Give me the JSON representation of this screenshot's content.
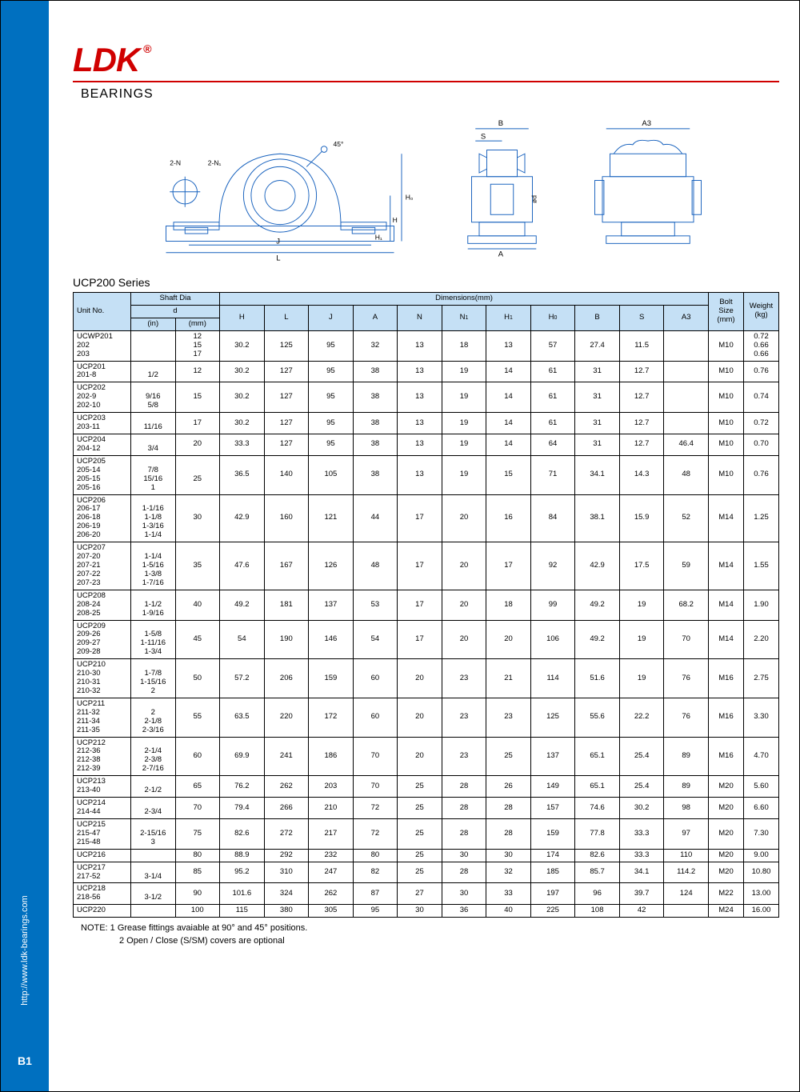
{
  "brand": "LDK",
  "brand_reg": "®",
  "subtitle": "BEARINGS",
  "side_url": "http://www.ldk-bearings.com",
  "page_number": "B1",
  "series_title": "UCP200 Series",
  "note_line1": "NOTE: 1 Grease fittings avaiable at 90° and 45° positions.",
  "note_line2": "2 Open / Close (S/SM) covers are optional",
  "colors": {
    "brand_red": "#d00000",
    "sidebar_blue": "#0070c0",
    "header_blue": "#c5e0f5",
    "border": "#000000",
    "diagram_line": "#1560bd"
  },
  "table": {
    "headers": {
      "unit_no": "Unit No.",
      "shaft_dia": "Shaft Dia",
      "d": "d",
      "in": "(in)",
      "mm": "(mm)",
      "dimensions": "Dimensions(mm)",
      "H": "H",
      "L": "L",
      "J": "J",
      "A": "A",
      "N": "N",
      "N1": "N",
      "N1_sub": "1",
      "H1": "H",
      "H1_sub": "1",
      "H0": "H",
      "H0_sub": "0",
      "B": "B",
      "S": "S",
      "A3": "A3",
      "bolt": "Bolt\nSize\n(mm)",
      "weight": "Weight\n(kg)"
    },
    "rows": [
      {
        "unit": "UCWP201\n202\n203",
        "in": "",
        "mm": "12\n15\n17",
        "H": "30.2",
        "L": "125",
        "J": "95",
        "A": "32",
        "N": "13",
        "N1": "18",
        "H1": "13",
        "H0": "57",
        "B": "27.4",
        "S": "11.5",
        "A3": "",
        "bolt": "M10",
        "wt": "0.72\n0.66\n0.66"
      },
      {
        "unit": "UCP201\n201-8",
        "in": "\n1/2",
        "mm": "12",
        "H": "30.2",
        "L": "127",
        "J": "95",
        "A": "38",
        "N": "13",
        "N1": "19",
        "H1": "14",
        "H0": "61",
        "B": "31",
        "S": "12.7",
        "A3": "",
        "bolt": "M10",
        "wt": "0.76"
      },
      {
        "unit": "UCP202\n202-9\n202-10",
        "in": "\n9/16\n5/8",
        "mm": "15",
        "H": "30.2",
        "L": "127",
        "J": "95",
        "A": "38",
        "N": "13",
        "N1": "19",
        "H1": "14",
        "H0": "61",
        "B": "31",
        "S": "12.7",
        "A3": "",
        "bolt": "M10",
        "wt": "0.74"
      },
      {
        "unit": "UCP203\n203-11",
        "in": "\n11/16",
        "mm": "17",
        "H": "30.2",
        "L": "127",
        "J": "95",
        "A": "38",
        "N": "13",
        "N1": "19",
        "H1": "14",
        "H0": "61",
        "B": "31",
        "S": "12.7",
        "A3": "",
        "bolt": "M10",
        "wt": "0.72"
      },
      {
        "unit": "UCP204\n204-12",
        "in": "\n3/4",
        "mm": "20",
        "H": "33.3",
        "L": "127",
        "J": "95",
        "A": "38",
        "N": "13",
        "N1": "19",
        "H1": "14",
        "H0": "64",
        "B": "31",
        "S": "12.7",
        "A3": "46.4",
        "bolt": "M10",
        "wt": "0.70"
      },
      {
        "unit": "UCP205\n205-14\n205-15\n205-16",
        "in": "\n7/8\n15/16\n1",
        "mm": "\n25",
        "H": "36.5",
        "L": "140",
        "J": "105",
        "A": "38",
        "N": "13",
        "N1": "19",
        "H1": "15",
        "H0": "71",
        "B": "34.1",
        "S": "14.3",
        "A3": "48",
        "bolt": "M10",
        "wt": "0.76"
      },
      {
        "unit": "UCP206\n206-17\n206-18\n206-19\n206-20",
        "in": "\n1-1/16\n1-1/8\n1-3/16\n1-1/4",
        "mm": "30",
        "H": "42.9",
        "L": "160",
        "J": "121",
        "A": "44",
        "N": "17",
        "N1": "20",
        "H1": "16",
        "H0": "84",
        "B": "38.1",
        "S": "15.9",
        "A3": "52",
        "bolt": "M14",
        "wt": "1.25"
      },
      {
        "unit": "UCP207\n207-20\n207-21\n207-22\n207-23",
        "in": "\n1-1/4\n1-5/16\n1-3/8\n1-7/16",
        "mm": "35",
        "H": "47.6",
        "L": "167",
        "J": "126",
        "A": "48",
        "N": "17",
        "N1": "20",
        "H1": "17",
        "H0": "92",
        "B": "42.9",
        "S": "17.5",
        "A3": "59",
        "bolt": "M14",
        "wt": "1.55"
      },
      {
        "unit": "UCP208\n208-24\n208-25",
        "in": "\n1-1/2\n1-9/16",
        "mm": "40",
        "H": "49.2",
        "L": "181",
        "J": "137",
        "A": "53",
        "N": "17",
        "N1": "20",
        "H1": "18",
        "H0": "99",
        "B": "49.2",
        "S": "19",
        "A3": "68.2",
        "bolt": "M14",
        "wt": "1.90"
      },
      {
        "unit": "UCP209\n209-26\n209-27\n209-28",
        "in": "\n1-5/8\n1-11/16\n1-3/4",
        "mm": "45",
        "H": "54",
        "L": "190",
        "J": "146",
        "A": "54",
        "N": "17",
        "N1": "20",
        "H1": "20",
        "H0": "106",
        "B": "49.2",
        "S": "19",
        "A3": "70",
        "bolt": "M14",
        "wt": "2.20"
      },
      {
        "unit": "UCP210\n210-30\n210-31\n210-32",
        "in": "\n1-7/8\n1-15/16\n2",
        "mm": "50",
        "H": "57.2",
        "L": "206",
        "J": "159",
        "A": "60",
        "N": "20",
        "N1": "23",
        "H1": "21",
        "H0": "114",
        "B": "51.6",
        "S": "19",
        "A3": "76",
        "bolt": "M16",
        "wt": "2.75"
      },
      {
        "unit": "UCP211\n211-32\n211-34\n211-35",
        "in": "\n2\n2-1/8\n2-3/16",
        "mm": "55",
        "H": "63.5",
        "L": "220",
        "J": "172",
        "A": "60",
        "N": "20",
        "N1": "23",
        "H1": "23",
        "H0": "125",
        "B": "55.6",
        "S": "22.2",
        "A3": "76",
        "bolt": "M16",
        "wt": "3.30"
      },
      {
        "unit": "UCP212\n212-36\n212-38\n212-39",
        "in": "\n2-1/4\n2-3/8\n2-7/16",
        "mm": "60",
        "H": "69.9",
        "L": "241",
        "J": "186",
        "A": "70",
        "N": "20",
        "N1": "23",
        "H1": "25",
        "H0": "137",
        "B": "65.1",
        "S": "25.4",
        "A3": "89",
        "bolt": "M16",
        "wt": "4.70"
      },
      {
        "unit": "UCP213\n213-40",
        "in": "\n2-1/2",
        "mm": "65",
        "H": "76.2",
        "L": "262",
        "J": "203",
        "A": "70",
        "N": "25",
        "N1": "28",
        "H1": "26",
        "H0": "149",
        "B": "65.1",
        "S": "25.4",
        "A3": "89",
        "bolt": "M20",
        "wt": "5.60"
      },
      {
        "unit": "UCP214\n214-44",
        "in": "\n2-3/4",
        "mm": "70",
        "H": "79.4",
        "L": "266",
        "J": "210",
        "A": "72",
        "N": "25",
        "N1": "28",
        "H1": "28",
        "H0": "157",
        "B": "74.6",
        "S": "30.2",
        "A3": "98",
        "bolt": "M20",
        "wt": "6.60"
      },
      {
        "unit": "UCP215\n215-47\n215-48",
        "in": "\n2-15/16\n3",
        "mm": "75",
        "H": "82.6",
        "L": "272",
        "J": "217",
        "A": "72",
        "N": "25",
        "N1": "28",
        "H1": "28",
        "H0": "159",
        "B": "77.8",
        "S": "33.3",
        "A3": "97",
        "bolt": "M20",
        "wt": "7.30"
      },
      {
        "unit": "UCP216",
        "in": "",
        "mm": "80",
        "H": "88.9",
        "L": "292",
        "J": "232",
        "A": "80",
        "N": "25",
        "N1": "30",
        "H1": "30",
        "H0": "174",
        "B": "82.6",
        "S": "33.3",
        "A3": "110",
        "bolt": "M20",
        "wt": "9.00"
      },
      {
        "unit": "UCP217\n217-52",
        "in": "\n3-1/4",
        "mm": "85",
        "H": "95.2",
        "L": "310",
        "J": "247",
        "A": "82",
        "N": "25",
        "N1": "28",
        "H1": "32",
        "H0": "185",
        "B": "85.7",
        "S": "34.1",
        "A3": "114.2",
        "bolt": "M20",
        "wt": "10.80"
      },
      {
        "unit": "UCP218\n218-56",
        "in": "\n3-1/2",
        "mm": "90",
        "H": "101.6",
        "L": "324",
        "J": "262",
        "A": "87",
        "N": "27",
        "N1": "30",
        "H1": "33",
        "H0": "197",
        "B": "96",
        "S": "39.7",
        "A3": "124",
        "bolt": "M22",
        "wt": "13.00"
      },
      {
        "unit": "UCP220",
        "in": "",
        "mm": "100",
        "H": "115",
        "L": "380",
        "J": "305",
        "A": "95",
        "N": "30",
        "N1": "36",
        "H1": "40",
        "H0": "225",
        "B": "108",
        "S": "42",
        "A3": "",
        "bolt": "M24",
        "wt": "16.00"
      }
    ]
  }
}
